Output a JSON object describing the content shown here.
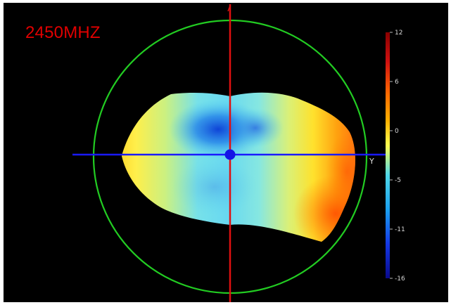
{
  "title": "2450MHZ",
  "chart_data": {
    "type": "heatmap",
    "title": "2450MHZ",
    "colorbar": {
      "ticks": [
        "12",
        "6",
        "0",
        "-5",
        "-11",
        "-16"
      ],
      "range": [
        -16,
        12
      ],
      "colors": [
        "#0a0a8c",
        "#1438e6",
        "#1aa0ee",
        "#4fd8e8",
        "#ffff50",
        "#ffb000",
        "#ff6a00",
        "#d01010",
        "#9a0000"
      ]
    },
    "axis_label": "Y",
    "axis_colors": {
      "horizontal": "#1a1aff",
      "vertical": "#e01010",
      "circle": "#22cc22"
    },
    "background": "#000000"
  }
}
